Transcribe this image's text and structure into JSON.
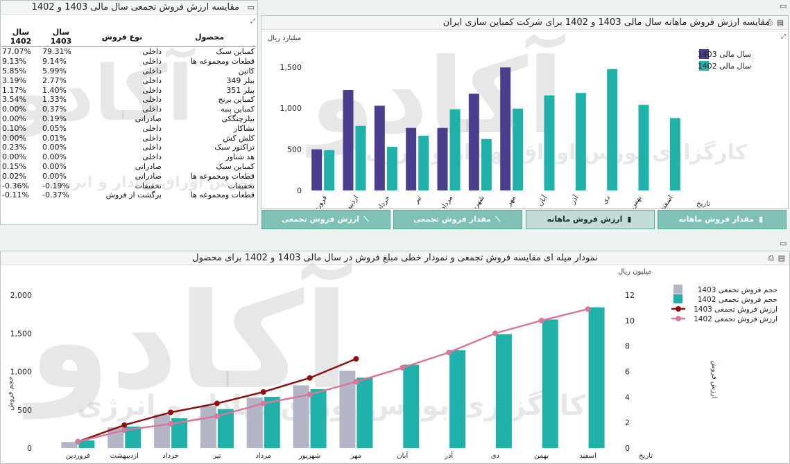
{
  "table_panel": {
    "title": "مقایسه ارزش فروش تجمعی سال مالی 1403 و 1402",
    "headers": {
      "product": "محصول",
      "sale_type": "نوع فروش",
      "year_1403": "سال 1403",
      "year_1402": "سال 1402"
    },
    "rows": [
      {
        "product": "کمباین سبک",
        "sale_type": "داخلی",
        "v1403": "79.31%",
        "v1402": "77.07%"
      },
      {
        "product": "قطعات ومجموعه ها",
        "sale_type": "داخلی",
        "v1403": "9.14%",
        "v1402": "9.13%"
      },
      {
        "product": "کاتین",
        "sale_type": "داخلی",
        "v1403": "5.99%",
        "v1402": "5.85%"
      },
      {
        "product": "بیلر 349",
        "sale_type": "داخلی",
        "v1403": "2.77%",
        "v1402": "3.19%"
      },
      {
        "product": "بیلر 351",
        "sale_type": "داخلی",
        "v1403": "1.40%",
        "v1402": "1.17%"
      },
      {
        "product": "کمباین برنج",
        "sale_type": "داخلی",
        "v1403": "1.33%",
        "v1402": "3.54%"
      },
      {
        "product": "کمباین پنبه",
        "sale_type": "داخلی",
        "v1403": "0.37%",
        "v1402": "0.00%"
      },
      {
        "product": "بیلرچنگکی",
        "sale_type": "صادراتی",
        "v1403": "0.19%",
        "v1402": "0.00%"
      },
      {
        "product": "نشاکار",
        "sale_type": "داخلی",
        "v1403": "0.05%",
        "v1402": "0.10%"
      },
      {
        "product": "کلش کش",
        "sale_type": "داخلی",
        "v1403": "0.01%",
        "v1402": "0.00%"
      },
      {
        "product": "تراکتور سبک",
        "sale_type": "داخلی",
        "v1403": "0.00%",
        "v1402": "0.23%"
      },
      {
        "product": "هد شناور",
        "sale_type": "داخلی",
        "v1403": "0.00%",
        "v1402": "0.00%"
      },
      {
        "product": "کمباین سبک",
        "sale_type": "صادراتی",
        "v1403": "0.00%",
        "v1402": "0.15%"
      },
      {
        "product": "قطعات ومجموعه ها",
        "sale_type": "صادراتی",
        "v1403": "0.00%",
        "v1402": "0.02%"
      },
      {
        "product": "تخفیفات",
        "sale_type": "تخفیفات",
        "v1403": "-0.19%",
        "v1402": "-0.36%"
      },
      {
        "product": "قطعات ومجموعه ها",
        "sale_type": "برگشت از فروش",
        "v1403": "-0.37%",
        "v1402": "-0.11%"
      }
    ]
  },
  "monthly_panel": {
    "title": "مقایسه ارزش فروش ماهانه سال مالی 1403 و 1402 برای شرکت کمباین سازی ایران",
    "tabs": [
      {
        "label": "مقدار فروش ماهانه",
        "icon": "bar-chart-icon",
        "active": false
      },
      {
        "label": "ارزش فروش ماهانه",
        "icon": "bar-chart-icon",
        "active": true
      },
      {
        "label": "مقدار فروش تجمعی",
        "icon": "line-chart-icon",
        "active": false
      },
      {
        "label": "ارزش فروش تجمعی",
        "icon": "line-chart-icon",
        "active": false
      }
    ]
  },
  "cumulative_panel": {
    "title": "نمودار میله ای مقایسه فروش تجمعی و نمودار خطی مبلغ فروش در سال مالی 1403 و 1402 برای محصول"
  },
  "watermark": {
    "logo_text": "آکادو",
    "sub_text": "کارگزاری بورس اوراق بهادار و انرژی"
  },
  "colors": {
    "c1403_bar": "#4a3f8c",
    "c1402_bar": "#20b2aa",
    "c1403_cum_bar": "#b4b6c8",
    "c1403_line": "#8b1010",
    "c1402_line": "#d9779a",
    "tab_bg": "#7fc1b5",
    "tab_active_bg": "#c3dcd7"
  },
  "chart_data": [
    {
      "type": "bar",
      "ylabel": "میلیارد ریال",
      "xlabel": "تاریخ",
      "ylim": [
        0,
        1700
      ],
      "yticks": [
        0,
        500,
        1000,
        1500
      ],
      "ytick_labels": [
        "0",
        "500",
        "1,000",
        "1,500"
      ],
      "categories": [
        "فروردین",
        "اردیبهشت",
        "خرداد",
        "تیر",
        "مرداد",
        "شهریور",
        "مهر",
        "آبان",
        "آذر",
        "دی",
        "بهمن",
        "اسفند"
      ],
      "series": [
        {
          "name": "سال مالی 1403",
          "values": [
            500,
            1220,
            1030,
            760,
            760,
            1175,
            1495,
            null,
            null,
            null,
            null,
            null
          ]
        },
        {
          "name": "سال مالی 1402",
          "values": [
            490,
            785,
            530,
            665,
            985,
            625,
            995,
            1155,
            1185,
            1475,
            1040,
            880
          ]
        }
      ],
      "legend": "top-right",
      "grid": false
    },
    {
      "type": "bar+line",
      "ylabel": "حجم فروش",
      "y2label": "ارزش فروش",
      "y_unit": "میلیون ریال",
      "xlabel": "تاریخ",
      "ylim": [
        0,
        2100
      ],
      "yticks": [
        0,
        500,
        1000,
        1500,
        2000
      ],
      "ytick_labels": [
        "0",
        "500",
        "1,000",
        "1,500",
        "2,000"
      ],
      "y2lim": [
        0,
        12.6
      ],
      "y2ticks": [
        0,
        2,
        4,
        6,
        8,
        10,
        12
      ],
      "categories": [
        "فروردین",
        "اردیبهشت",
        "خرداد",
        "تیر",
        "مرداد",
        "شهریور",
        "مهر",
        "آبان",
        "آذر",
        "دی",
        "بهمن",
        "اسفند"
      ],
      "bar_series": [
        {
          "name": "حجم فروش تجمعی 1403",
          "values": [
            80,
            270,
            440,
            550,
            660,
            820,
            1010,
            null,
            null,
            null,
            null,
            null
          ]
        },
        {
          "name": "حجم فروش تجمعی 1402",
          "values": [
            100,
            280,
            390,
            510,
            670,
            770,
            920,
            1090,
            1280,
            1490,
            1680,
            1840
          ]
        }
      ],
      "line_series": [
        {
          "name": "ارزش فروش تجمعی 1403",
          "values": [
            0.5,
            1.8,
            2.8,
            3.5,
            4.4,
            5.5,
            7.0,
            null,
            null,
            null,
            null,
            null
          ]
        },
        {
          "name": "ارزش فروش تجمعی 1402",
          "values": [
            0.5,
            1.4,
            1.9,
            2.5,
            3.5,
            4.2,
            5.2,
            6.3,
            7.5,
            9.0,
            10.0,
            10.9
          ]
        }
      ],
      "legend": "top-right",
      "grid": false
    }
  ]
}
